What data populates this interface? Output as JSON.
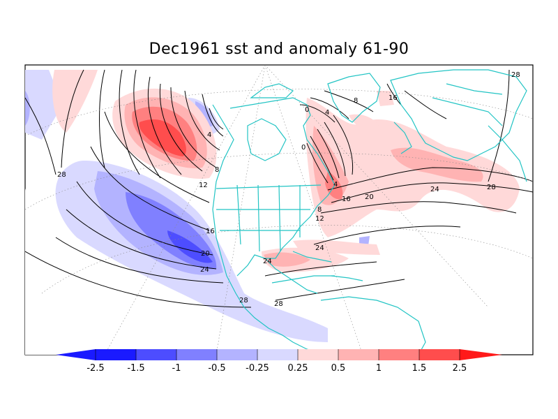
{
  "title": "Dec1961 sst and anomaly 61-90",
  "colors": {
    "neg_2_5": "#1a1aff",
    "neg_1_5": "#4d4dff",
    "neg_1": "#8080ff",
    "neg_0_5": "#b3b3ff",
    "neg_0_25": "#d9d9ff",
    "neutral": "#ffffff",
    "pos_0_25": "#ffd9d9",
    "pos_0_5": "#ffb3b3",
    "pos_1": "#ff8080",
    "pos_1_5": "#ff4d4d",
    "pos_2_5": "#ff1a1a",
    "coastline": "#22c4c4",
    "contour": "#000000"
  },
  "colorbar": {
    "ticks": [
      "-2.5",
      "-1.5",
      "-1",
      "-0.5",
      "-0.25",
      "0.25",
      "0.5",
      "1",
      "1.5",
      "2.5"
    ]
  },
  "contour_labels": {
    "pacific": [
      "28",
      "4",
      "8",
      "12",
      "16",
      "20",
      "24",
      "28",
      "28"
    ],
    "atlantic": [
      "0",
      "4",
      "8",
      "16",
      "0",
      "4",
      "8",
      "12",
      "16",
      "20",
      "24",
      "24",
      "28",
      "24",
      "28"
    ]
  }
}
